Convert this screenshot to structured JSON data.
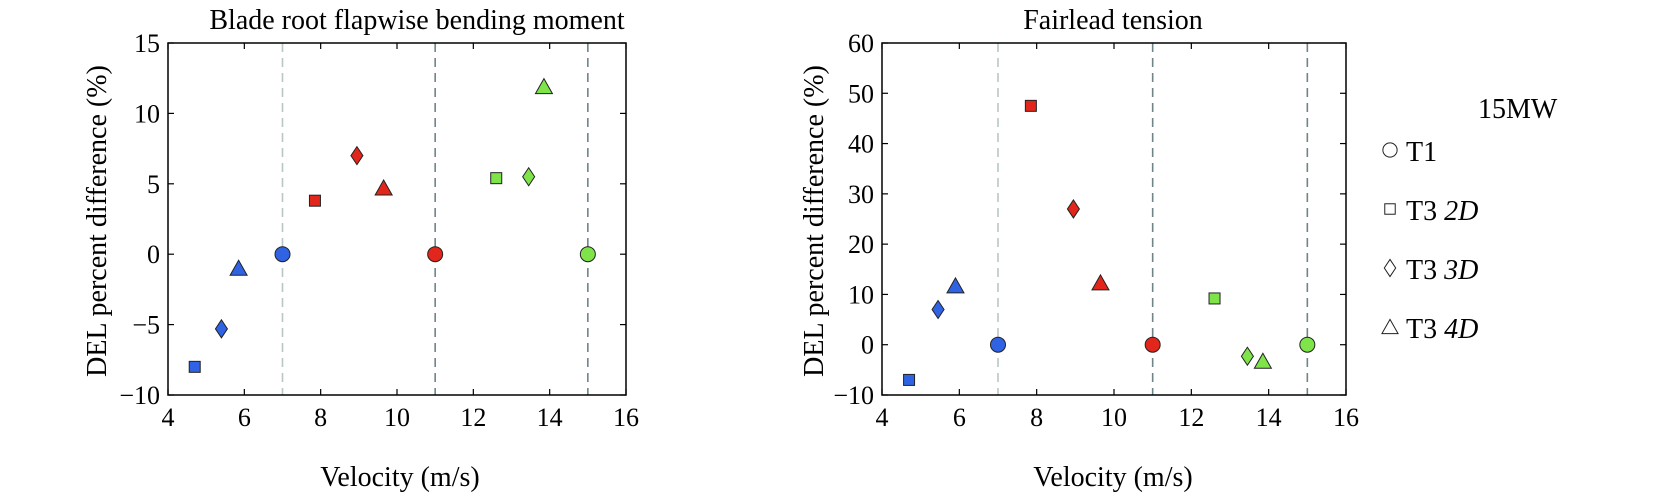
{
  "legend": {
    "title": "15MW",
    "items": [
      {
        "marker": "circle",
        "prefix": "T1",
        "suffix": ""
      },
      {
        "marker": "square",
        "prefix": "T3 ",
        "suffix": "2D"
      },
      {
        "marker": "diamond",
        "prefix": "T3 ",
        "suffix": "3D"
      },
      {
        "marker": "triangle",
        "prefix": "T3 ",
        "suffix": "4D"
      }
    ]
  },
  "colors": {
    "blue": "#2f63e3",
    "red": "#e3261b",
    "green": "#7fe34a",
    "gridline": "#9aa8ab"
  },
  "chart_data": [
    {
      "type": "scatter",
      "title": "Blade root flapwise bending moment",
      "xlabel": "Velocity (m/s)",
      "ylabel": "DEL percent difference (%)",
      "xlim": [
        4,
        16
      ],
      "ylim": [
        -10,
        15
      ],
      "xticks": [
        "4",
        "6",
        "8",
        "10",
        "12",
        "14",
        "16"
      ],
      "yticks": [
        "15",
        "10",
        "5",
        "0",
        "−5",
        "−10"
      ],
      "vertical_dashed_lines_x": [
        7,
        11,
        15
      ],
      "points": [
        {
          "x": 4.7,
          "y": -8.0,
          "marker": "square",
          "color": "blue"
        },
        {
          "x": 5.4,
          "y": -5.3,
          "marker": "diamond",
          "color": "blue"
        },
        {
          "x": 5.85,
          "y": -1.0,
          "marker": "triangle",
          "color": "blue"
        },
        {
          "x": 7.0,
          "y": 0.0,
          "marker": "circle",
          "color": "blue"
        },
        {
          "x": 7.85,
          "y": 3.8,
          "marker": "square",
          "color": "red"
        },
        {
          "x": 8.95,
          "y": 7.0,
          "marker": "diamond",
          "color": "red"
        },
        {
          "x": 9.65,
          "y": 4.7,
          "marker": "triangle",
          "color": "red"
        },
        {
          "x": 11.0,
          "y": 0.0,
          "marker": "circle",
          "color": "red"
        },
        {
          "x": 12.6,
          "y": 5.4,
          "marker": "square",
          "color": "green"
        },
        {
          "x": 13.45,
          "y": 5.5,
          "marker": "diamond",
          "color": "green"
        },
        {
          "x": 13.85,
          "y": 11.9,
          "marker": "triangle",
          "color": "green"
        },
        {
          "x": 15.0,
          "y": 0.0,
          "marker": "circle",
          "color": "green"
        }
      ]
    },
    {
      "type": "scatter",
      "title": "Fairlead tension",
      "xlabel": "Velocity (m/s)",
      "ylabel": "DEL percent difference (%)",
      "xlim": [
        4,
        16
      ],
      "ylim": [
        -10,
        60
      ],
      "xticks": [
        "4",
        "6",
        "8",
        "10",
        "12",
        "14",
        "16"
      ],
      "yticks": [
        "60",
        "50",
        "40",
        "30",
        "20",
        "10",
        "0",
        "−10"
      ],
      "vertical_dashed_lines_x": [
        7,
        11,
        15
      ],
      "points": [
        {
          "x": 4.7,
          "y": -7.0,
          "marker": "square",
          "color": "blue"
        },
        {
          "x": 5.45,
          "y": 7.0,
          "marker": "diamond",
          "color": "blue"
        },
        {
          "x": 5.9,
          "y": 11.7,
          "marker": "triangle",
          "color": "blue"
        },
        {
          "x": 7.0,
          "y": 0.0,
          "marker": "circle",
          "color": "blue"
        },
        {
          "x": 7.85,
          "y": 47.5,
          "marker": "square",
          "color": "red"
        },
        {
          "x": 8.95,
          "y": 27.0,
          "marker": "diamond",
          "color": "red"
        },
        {
          "x": 9.65,
          "y": 12.3,
          "marker": "triangle",
          "color": "red"
        },
        {
          "x": 11.0,
          "y": 0.0,
          "marker": "circle",
          "color": "red"
        },
        {
          "x": 12.6,
          "y": 9.2,
          "marker": "square",
          "color": "green"
        },
        {
          "x": 13.45,
          "y": -2.3,
          "marker": "diamond",
          "color": "green"
        },
        {
          "x": 13.85,
          "y": -3.3,
          "marker": "triangle",
          "color": "green"
        },
        {
          "x": 15.0,
          "y": 0.0,
          "marker": "circle",
          "color": "green"
        }
      ]
    }
  ]
}
